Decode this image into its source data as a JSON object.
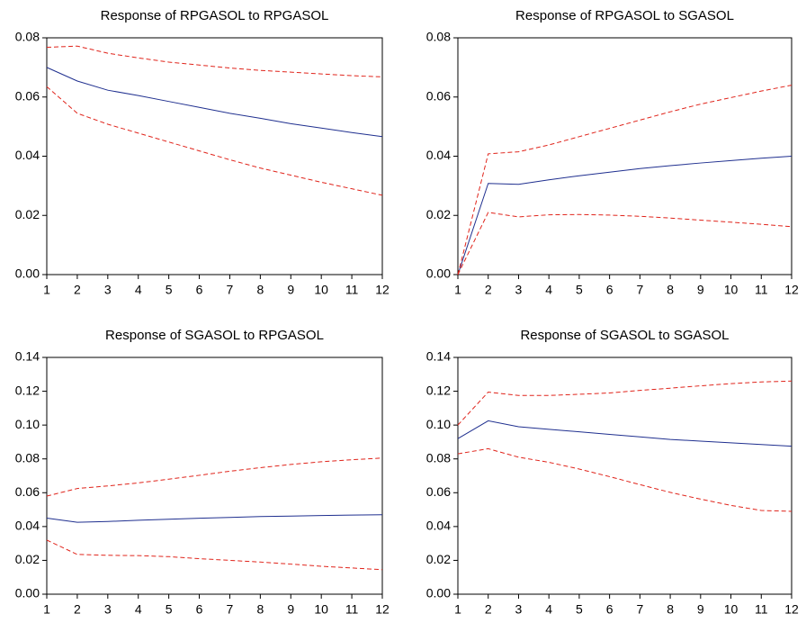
{
  "chart_data": [
    {
      "type": "line",
      "title": "Response of RPGASOL to RPGASOL",
      "x": [
        1,
        2,
        3,
        4,
        5,
        6,
        7,
        8,
        9,
        10,
        11,
        12
      ],
      "xlim": [
        1,
        12
      ],
      "xticks": [
        1,
        2,
        3,
        4,
        5,
        6,
        7,
        8,
        9,
        10,
        11,
        12
      ],
      "ylim": [
        0,
        0.08
      ],
      "yticks": [
        {
          "value": 0,
          "label": "0.00"
        },
        {
          "value": 0.02,
          "label": "0.02"
        },
        {
          "value": 0.04,
          "label": "0.04"
        },
        {
          "value": 0.06,
          "label": "0.06"
        },
        {
          "value": 0.08,
          "label": "0.08"
        }
      ],
      "series": [
        {
          "color": "#1f2f8f",
          "style": "solid",
          "values": [
            0.07,
            0.0654,
            0.0623,
            0.0605,
            0.0585,
            0.0565,
            0.0545,
            0.0528,
            0.051,
            0.0495,
            0.048,
            0.0466
          ]
        },
        {
          "color": "#e0241b",
          "style": "dashed",
          "values": [
            0.0768,
            0.0772,
            0.0748,
            0.0732,
            0.0718,
            0.0708,
            0.0698,
            0.069,
            0.0684,
            0.0678,
            0.0672,
            0.0668
          ]
        },
        {
          "color": "#e0241b",
          "style": "dashed",
          "values": [
            0.0635,
            0.0545,
            0.0508,
            0.0478,
            0.0448,
            0.0418,
            0.0388,
            0.036,
            0.0336,
            0.0312,
            0.029,
            0.0268
          ]
        }
      ]
    },
    {
      "type": "line",
      "title": "Response of RPGASOL to SGASOL",
      "x": [
        1,
        2,
        3,
        4,
        5,
        6,
        7,
        8,
        9,
        10,
        11,
        12
      ],
      "xlim": [
        1,
        12
      ],
      "xticks": [
        1,
        2,
        3,
        4,
        5,
        6,
        7,
        8,
        9,
        10,
        11,
        12
      ],
      "ylim": [
        0,
        0.08
      ],
      "yticks": [
        {
          "value": 0,
          "label": "0.00"
        },
        {
          "value": 0.02,
          "label": "0.02"
        },
        {
          "value": 0.04,
          "label": "0.04"
        },
        {
          "value": 0.06,
          "label": "0.06"
        },
        {
          "value": 0.08,
          "label": "0.08"
        }
      ],
      "series": [
        {
          "color": "#1f2f8f",
          "style": "solid",
          "values": [
            0,
            0.0308,
            0.0305,
            0.032,
            0.0334,
            0.0346,
            0.0358,
            0.0368,
            0.0377,
            0.0385,
            0.0393,
            0.04
          ]
        },
        {
          "color": "#e0241b",
          "style": "dashed",
          "values": [
            0,
            0.0408,
            0.0415,
            0.0438,
            0.0466,
            0.0494,
            0.0522,
            0.055,
            0.0576,
            0.0598,
            0.062,
            0.064
          ]
        },
        {
          "color": "#e0241b",
          "style": "dashed",
          "values": [
            0,
            0.021,
            0.0195,
            0.0202,
            0.0203,
            0.0201,
            0.0197,
            0.0191,
            0.0184,
            0.0177,
            0.017,
            0.0162
          ]
        }
      ]
    },
    {
      "type": "line",
      "title": "Response of SGASOL to RPGASOL",
      "x": [
        1,
        2,
        3,
        4,
        5,
        6,
        7,
        8,
        9,
        10,
        11,
        12
      ],
      "xlim": [
        1,
        12
      ],
      "xticks": [
        1,
        2,
        3,
        4,
        5,
        6,
        7,
        8,
        9,
        10,
        11,
        12
      ],
      "ylim": [
        0,
        0.14
      ],
      "yticks": [
        {
          "value": 0,
          "label": "0.00"
        },
        {
          "value": 0.02,
          "label": "0.02"
        },
        {
          "value": 0.04,
          "label": "0.04"
        },
        {
          "value": 0.06,
          "label": "0.06"
        },
        {
          "value": 0.08,
          "label": "0.08"
        },
        {
          "value": 0.1,
          "label": "0.10"
        },
        {
          "value": 0.12,
          "label": "0.12"
        },
        {
          "value": 0.14,
          "label": "0.14"
        }
      ],
      "series": [
        {
          "color": "#1f2f8f",
          "style": "solid",
          "values": [
            0.045,
            0.0425,
            0.043,
            0.0437,
            0.0443,
            0.0449,
            0.0454,
            0.0459,
            0.0462,
            0.0465,
            0.0468,
            0.047
          ]
        },
        {
          "color": "#e0241b",
          "style": "dashed",
          "values": [
            0.058,
            0.0625,
            0.064,
            0.0658,
            0.068,
            0.0703,
            0.0727,
            0.0748,
            0.0767,
            0.0783,
            0.0795,
            0.0805
          ]
        },
        {
          "color": "#e0241b",
          "style": "dashed",
          "values": [
            0.032,
            0.0235,
            0.023,
            0.0228,
            0.0222,
            0.021,
            0.02,
            0.019,
            0.0178,
            0.0165,
            0.0155,
            0.0145
          ]
        }
      ]
    },
    {
      "type": "line",
      "title": "Response of SGASOL to SGASOL",
      "x": [
        1,
        2,
        3,
        4,
        5,
        6,
        7,
        8,
        9,
        10,
        11,
        12
      ],
      "xlim": [
        1,
        12
      ],
      "xticks": [
        1,
        2,
        3,
        4,
        5,
        6,
        7,
        8,
        9,
        10,
        11,
        12
      ],
      "ylim": [
        0,
        0.14
      ],
      "yticks": [
        {
          "value": 0,
          "label": "0.00"
        },
        {
          "value": 0.02,
          "label": "0.02"
        },
        {
          "value": 0.04,
          "label": "0.04"
        },
        {
          "value": 0.06,
          "label": "0.06"
        },
        {
          "value": 0.08,
          "label": "0.08"
        },
        {
          "value": 0.1,
          "label": "0.10"
        },
        {
          "value": 0.12,
          "label": "0.12"
        },
        {
          "value": 0.14,
          "label": "0.14"
        }
      ],
      "series": [
        {
          "color": "#1f2f8f",
          "style": "solid",
          "values": [
            0.092,
            0.1025,
            0.099,
            0.0975,
            0.096,
            0.0945,
            0.093,
            0.0915,
            0.0905,
            0.0895,
            0.0885,
            0.0875
          ]
        },
        {
          "color": "#e0241b",
          "style": "dashed",
          "values": [
            0.1,
            0.1195,
            0.1175,
            0.1175,
            0.1182,
            0.119,
            0.1205,
            0.1218,
            0.1232,
            0.1245,
            0.1255,
            0.126
          ]
        },
        {
          "color": "#e0241b",
          "style": "dashed",
          "values": [
            0.083,
            0.086,
            0.081,
            0.078,
            0.074,
            0.0695,
            0.0648,
            0.0602,
            0.0562,
            0.0525,
            0.0495,
            0.049
          ]
        }
      ]
    }
  ]
}
